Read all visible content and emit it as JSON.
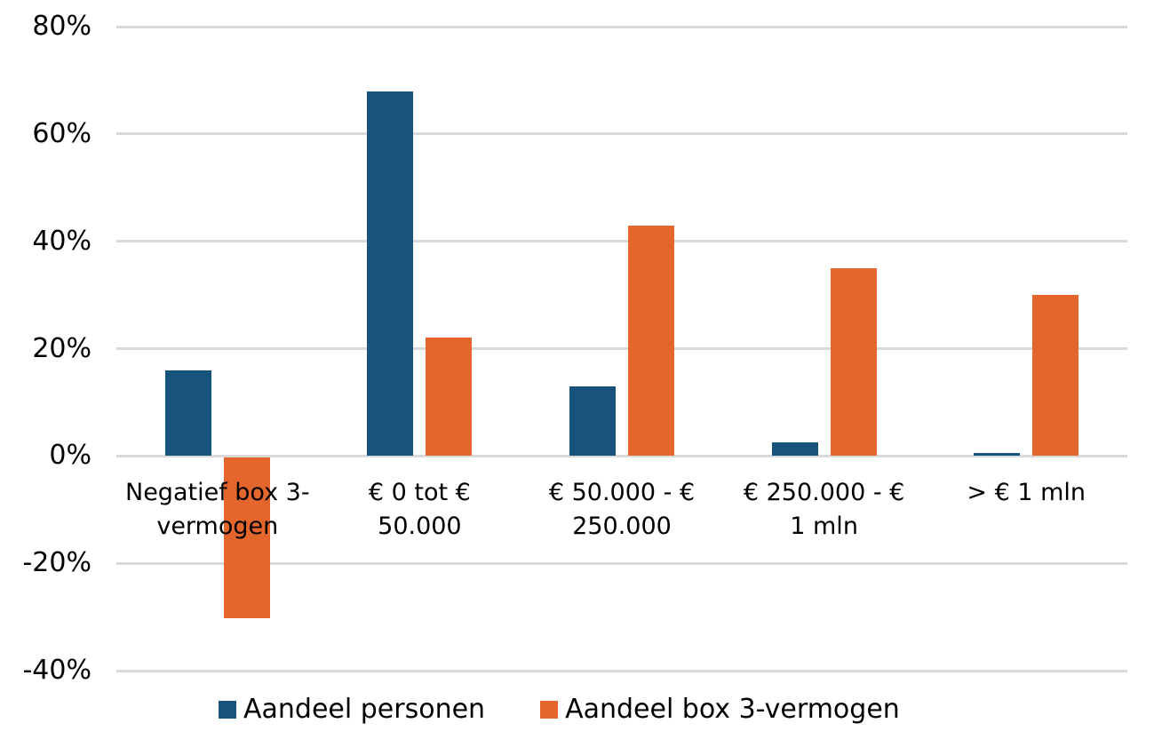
{
  "chart_data": {
    "type": "bar",
    "title": "",
    "xlabel": "",
    "ylabel": "",
    "categories": [
      "Negatief box 3-\nvermogen",
      "€ 0 tot €\n50.000",
      "€ 50.000 - €\n250.000",
      "€ 250.000 - €\n1 mln",
      "> € 1 mln"
    ],
    "series": [
      {
        "name": "Aandeel personen",
        "color": "#17537A",
        "values": [
          16,
          68,
          13,
          2.6,
          0.5
        ]
      },
      {
        "name": "Aandeel box 3-vermogen",
        "color": "#E4662C",
        "values": [
          -30,
          22,
          43,
          35,
          30
        ]
      }
    ],
    "y_axis": {
      "min": -40,
      "max": 80,
      "step": 20,
      "unit": "%",
      "tick_labels": [
        "80%",
        "60%",
        "40%",
        "20%",
        "0%",
        "-20%",
        "-40%"
      ]
    },
    "grid": true,
    "gridline_color": "#D9D9D9",
    "background_color": "#FFFFFF",
    "text_color": "#000000",
    "legend_position": "bottom"
  }
}
